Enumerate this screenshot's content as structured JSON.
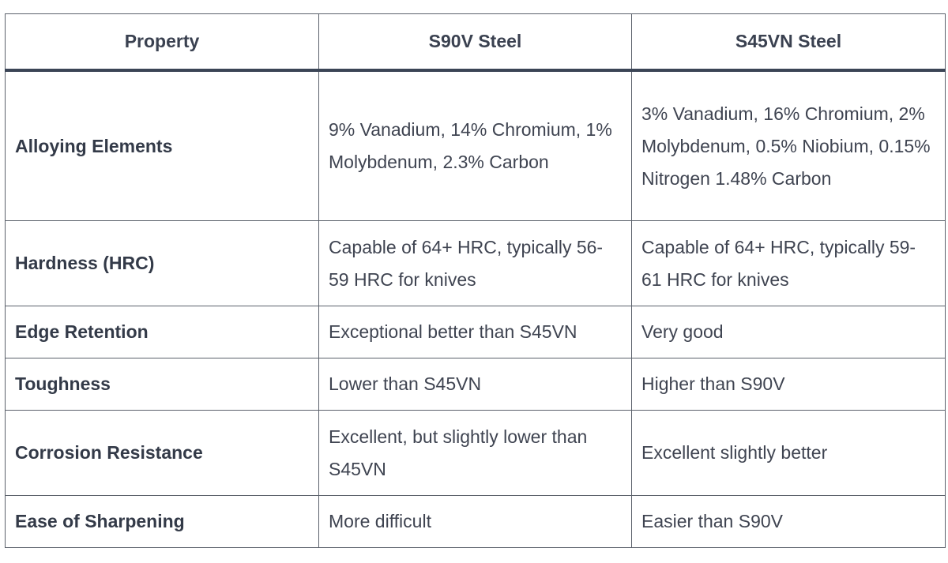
{
  "table": {
    "headers": [
      "Property",
      "S90V Steel",
      "S45VN Steel"
    ],
    "rows": [
      {
        "property": "Alloying Elements",
        "s90v": "9% Vanadium, 14% Chromium, 1% Molybdenum, 2.3% Carbon",
        "s45vn": "3% Vanadium, 16% Chromium, 2% Molybdenum, 0.5% Niobium, 0.15% Nitrogen 1.48% Carbon"
      },
      {
        "property": "Hardness (HRC)",
        "s90v": "Capable of 64+ HRC, typically 56-59 HRC for knives",
        "s45vn": "Capable of 64+ HRC, typically 59-61 HRC for knives"
      },
      {
        "property": "Edge Retention",
        "s90v": "Exceptional better than S45VN",
        "s45vn": "Very good"
      },
      {
        "property": "Toughness",
        "s90v": "Lower than S45VN",
        "s45vn": "Higher than S90V"
      },
      {
        "property": "Corrosion Resistance",
        "s90v": "Excellent, but slightly lower than S45VN",
        "s45vn": "Excellent slightly better"
      },
      {
        "property": "Ease of Sharpening",
        "s90v": "More difficult",
        "s45vn": "Easier than S90V"
      }
    ]
  }
}
